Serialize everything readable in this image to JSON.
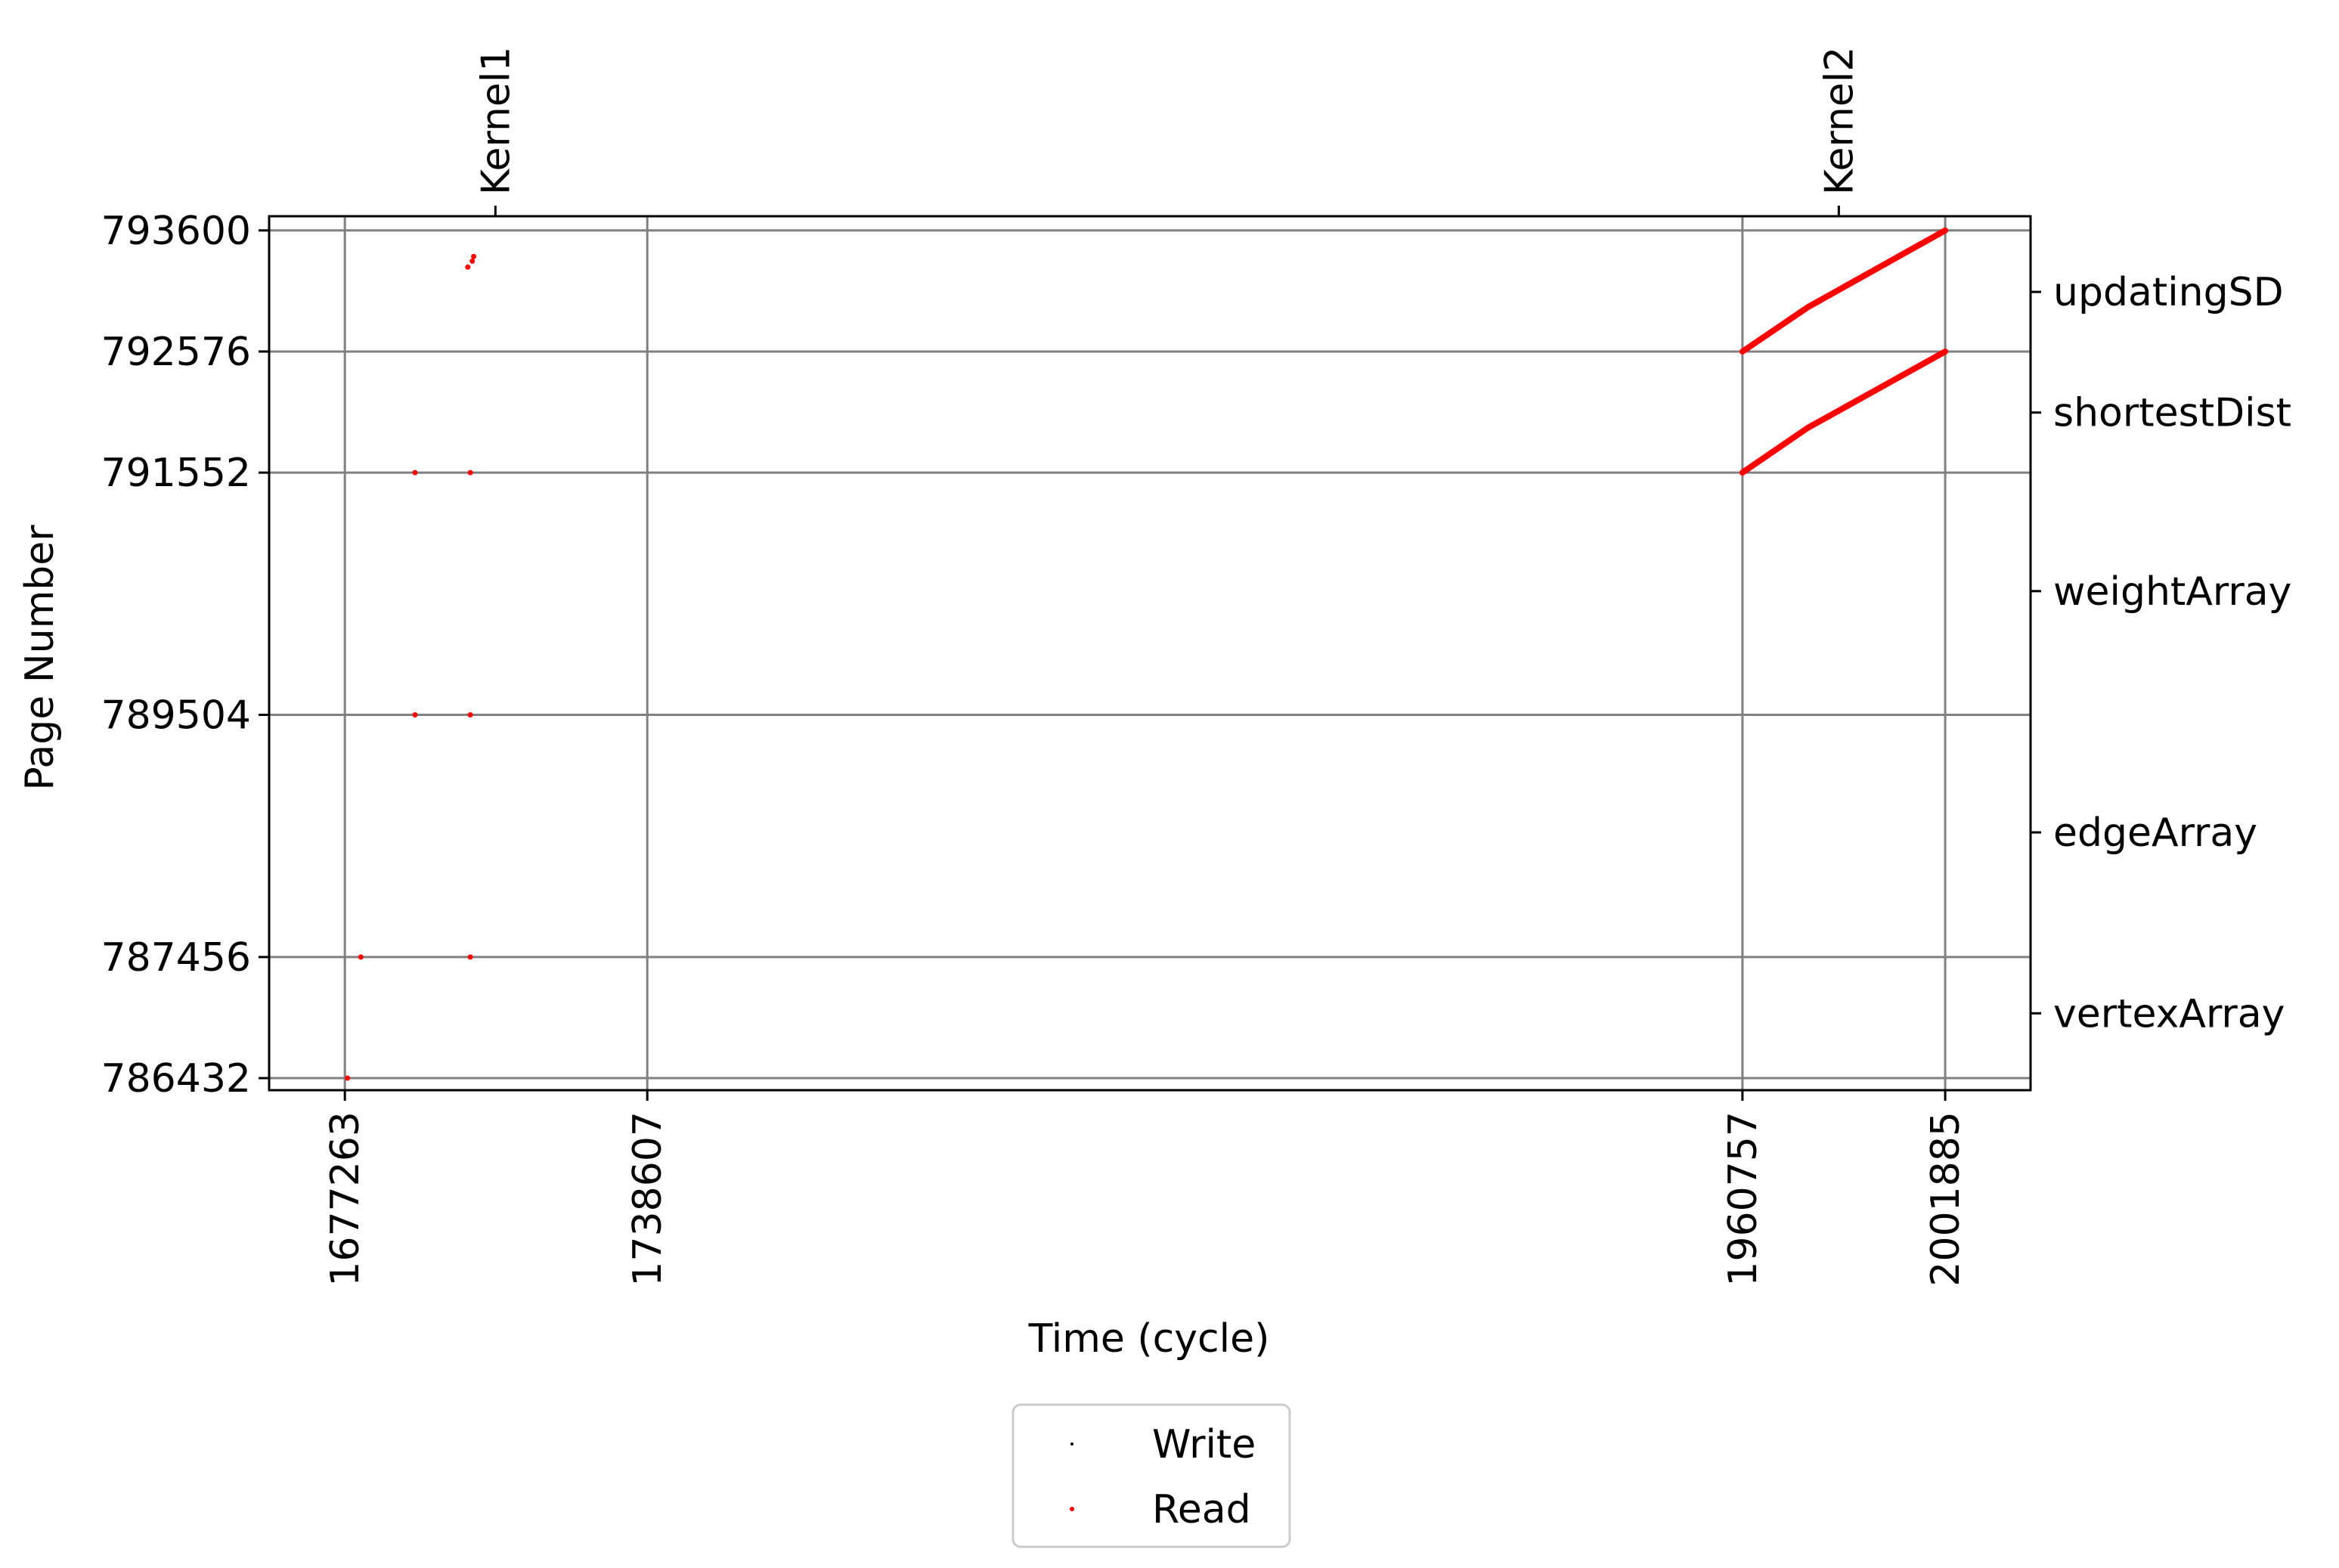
{
  "chart_data": {
    "type": "scatter",
    "title": "",
    "xlabel": "Time (cycle)",
    "ylabel": "Page Number",
    "xlim": [
      1661900,
      2019200
    ],
    "ylim": [
      786330,
      793720
    ],
    "grid": true,
    "x_ticks": [
      1677263,
      1738607,
      1960757,
      2001885
    ],
    "x_tick_labels": [
      "1677263",
      "1738607",
      "1960757",
      "2001885"
    ],
    "y_ticks": [
      786432,
      787456,
      789504,
      791552,
      792576,
      793600
    ],
    "y_tick_labels": [
      "786432",
      "787456",
      "789504",
      "791552",
      "792576",
      "793600"
    ],
    "top_axis": {
      "ticks": [
        1707800,
        1980300
      ],
      "labels": [
        "Kernel1",
        "Kernel2"
      ]
    },
    "right_axis": {
      "ticks": [
        786980,
        788510,
        790550,
        792060,
        793080
      ],
      "labels": [
        "vertexArray",
        "edgeArray",
        "weightArray",
        "shortestDist",
        "updatingSD"
      ]
    },
    "legend": {
      "position": "below",
      "entries": [
        {
          "name": "Write",
          "color": "#000000"
        },
        {
          "name": "Read",
          "color": "#ff0000"
        }
      ]
    },
    "series": [
      {
        "name": "Write",
        "color": "#000000",
        "points": [
          [
            1677800,
            786432
          ],
          [
            1680500,
            787456
          ],
          [
            1691500,
            791552
          ],
          [
            1691500,
            789504
          ],
          [
            1702700,
            791552
          ],
          [
            1702700,
            789504
          ],
          [
            1702700,
            787456
          ]
        ],
        "lines": []
      },
      {
        "name": "Read",
        "color": "#ff0000",
        "points": [
          [
            1677800,
            786432
          ],
          [
            1680500,
            787456
          ],
          [
            1691500,
            791552
          ],
          [
            1691500,
            789504
          ],
          [
            1702700,
            791552
          ],
          [
            1702700,
            789504
          ],
          [
            1702700,
            787456
          ],
          [
            1702200,
            793290
          ],
          [
            1703100,
            793340
          ],
          [
            1703400,
            793380
          ]
        ],
        "lines": [
          [
            [
              1960757,
              791552
            ],
            [
              1974000,
              791930
            ],
            [
              2001885,
              792576
            ]
          ],
          [
            [
              1960757,
              792576
            ],
            [
              1974000,
              792950
            ],
            [
              2001885,
              793600
            ]
          ]
        ]
      }
    ]
  }
}
